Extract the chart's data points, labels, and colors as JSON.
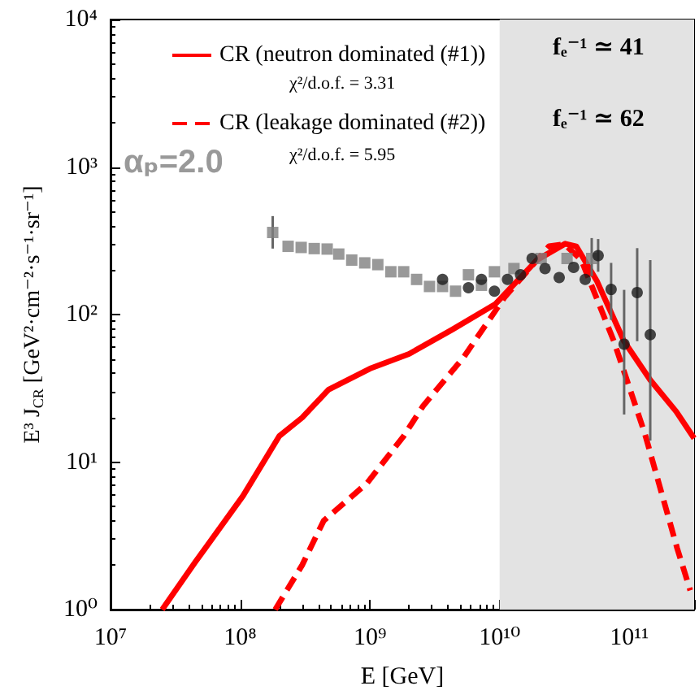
{
  "chart_data": {
    "type": "line",
    "xlabel": "E [GeV]",
    "ylabel": "E³ J$_{CR}$ [GeV²·cm⁻²·s⁻¹·sr⁻¹]",
    "log": "xy",
    "grid": false,
    "legend": "top",
    "xlim": [
      10000000.0,
      316000000000.0
    ],
    "ylim": [
      1,
      10000
    ],
    "xticks": [
      {
        "value": 10000000.0,
        "label": "10⁷"
      },
      {
        "value": 100000000.0,
        "label": "10⁸"
      },
      {
        "value": 1000000000.0,
        "label": "10⁹"
      },
      {
        "value": 10000000000.0,
        "label": "10¹⁰"
      },
      {
        "value": 100000000000.0,
        "label": "10¹¹"
      }
    ],
    "yticks": [
      {
        "value": 1,
        "label": "10⁰"
      },
      {
        "value": 10,
        "label": "10¹"
      },
      {
        "value": 100,
        "label": "10²"
      },
      {
        "value": 1000,
        "label": "10³"
      },
      {
        "value": 10000,
        "label": "10⁴"
      }
    ],
    "bands": [
      {
        "axis": "x",
        "from": 10000000000.0,
        "to": 316000000000.0,
        "color": "#e3e3e3"
      }
    ],
    "annotations": [
      "αₚ=2.0",
      "χ²/d.o.f. = 3.31",
      "χ²/d.o.f. = 5.95",
      "fₑ⁻¹ ≃ 41",
      "fₑ⁻¹ ≃ 62"
    ],
    "series": [
      {
        "type": "scatter",
        "marker": "square",
        "color": "#808080",
        "x": [
          178000000.0,
          234000000.0,
          295000000.0,
          372000000.0,
          468000000.0,
          575000000.0,
          724000000.0,
          912000000.0,
          1150000000.0,
          1450000000.0,
          1820000000.0,
          2290000000.0,
          2880000000.0,
          3630000000.0,
          4570000000.0,
          5750000000.0,
          7240000000.0,
          9120000000.0,
          12900000000.0,
          20900000000.0,
          33100000000.0,
          51300000000.0
        ],
        "values": [
          360,
          290,
          285,
          280,
          278,
          257,
          234,
          224,
          218,
          195,
          195,
          173,
          155,
          155,
          144,
          186,
          158,
          195,
          205,
          240,
          240,
          240
        ],
        "errors": [
          [
            280,
            465
          ],
          null,
          null,
          null,
          null,
          null,
          null,
          null,
          null,
          null,
          null,
          null,
          null,
          null,
          null,
          null,
          null,
          null,
          null,
          null,
          null,
          [
            182,
            330
          ]
        ]
      },
      {
        "type": "scatter",
        "marker": "circle",
        "color": "#1a1a1a",
        "x": [
          3630000000.0,
          5750000000.0,
          7240000000.0,
          9120000000.0,
          11500000000.0,
          14500000000.0,
          17800000000.0,
          22400000000.0,
          28800000000.0,
          37200000000.0,
          45700000000.0,
          57500000000.0,
          72400000000.0,
          91200000000.0,
          115000000000.0,
          145000000000.0
        ],
        "values": [
          173,
          152,
          173,
          144,
          173,
          186,
          240,
          205,
          178,
          209,
          173,
          251,
          148,
          63,
          141,
          73
        ],
        "errors": [
          null,
          null,
          null,
          null,
          null,
          null,
          null,
          null,
          null,
          null,
          null,
          [
            195,
            325
          ],
          [
            92,
            224
          ],
          [
            21,
            147
          ],
          [
            66,
            282
          ],
          [
            14,
            234
          ]
        ]
      },
      {
        "name": "CR (neutron dominated (#1))",
        "color": "#ff0000",
        "line_style": "solid",
        "x": [
          25000000.0,
          45000000.0,
          105000000.0,
          200000000.0,
          300000000.0,
          480000000.0,
          1000000000.0,
          2000000000.0,
          4300000000.0,
          9300000000.0,
          19500000000.0,
          32000000000.0,
          39000000000.0,
          56000000000.0,
          91000000000.0,
          145000000000.0,
          230000000000.0,
          316000000000.0
        ],
        "values": [
          1,
          2.1,
          5.9,
          15,
          20,
          31,
          43,
          54,
          79,
          118,
          235,
          302,
          290,
          170,
          66,
          36,
          22,
          14.5
        ]
      },
      {
        "name": "CR (leakage dominated (#2))",
        "color": "#ff0000",
        "line_style": "dashed",
        "x": [
          186000000.0,
          300000000.0,
          440000000.0,
          950000000.0,
          1820000000.0,
          2570000000.0,
          5250000000.0,
          11000000000.0,
          24000000000.0,
          31600000000.0,
          42700000000.0,
          76000000000.0,
          132000000000.0,
          234000000000.0,
          295000000000.0
        ],
        "values": [
          1,
          2.0,
          4.0,
          7.2,
          15,
          24,
          51,
          132,
          290,
          300,
          234,
          66,
          15.5,
          2.6,
          1.35
        ]
      }
    ]
  }
}
